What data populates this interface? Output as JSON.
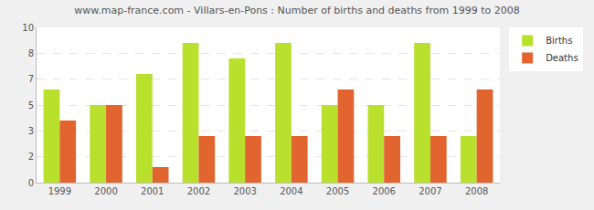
{
  "chart_data": {
    "type": "bar",
    "title": "www.map-france.com - Villars-en-Pons : Number of births and deaths from 1999 to 2008",
    "categories": [
      "1999",
      "2000",
      "2001",
      "2002",
      "2003",
      "2004",
      "2005",
      "2006",
      "2007",
      "2008"
    ],
    "series": [
      {
        "name": "Births",
        "color": "#b8e02c",
        "values": [
          6,
          5,
          7,
          9,
          8,
          9,
          5,
          5,
          9,
          3
        ]
      },
      {
        "name": "Deaths",
        "color": "#e2652f",
        "values": [
          4,
          5,
          1,
          3,
          3,
          3,
          6,
          3,
          3,
          6
        ]
      }
    ],
    "ylim": [
      0,
      10
    ],
    "yticks": [
      0,
      {
        "value": 1.6667,
        "label": "2"
      },
      {
        "value": 3.3333,
        "label": "3"
      },
      5,
      {
        "value": 6.6667,
        "label": "7"
      },
      {
        "value": 8.3333,
        "label": "8"
      },
      10
    ],
    "grid": true,
    "legend": "top right"
  }
}
